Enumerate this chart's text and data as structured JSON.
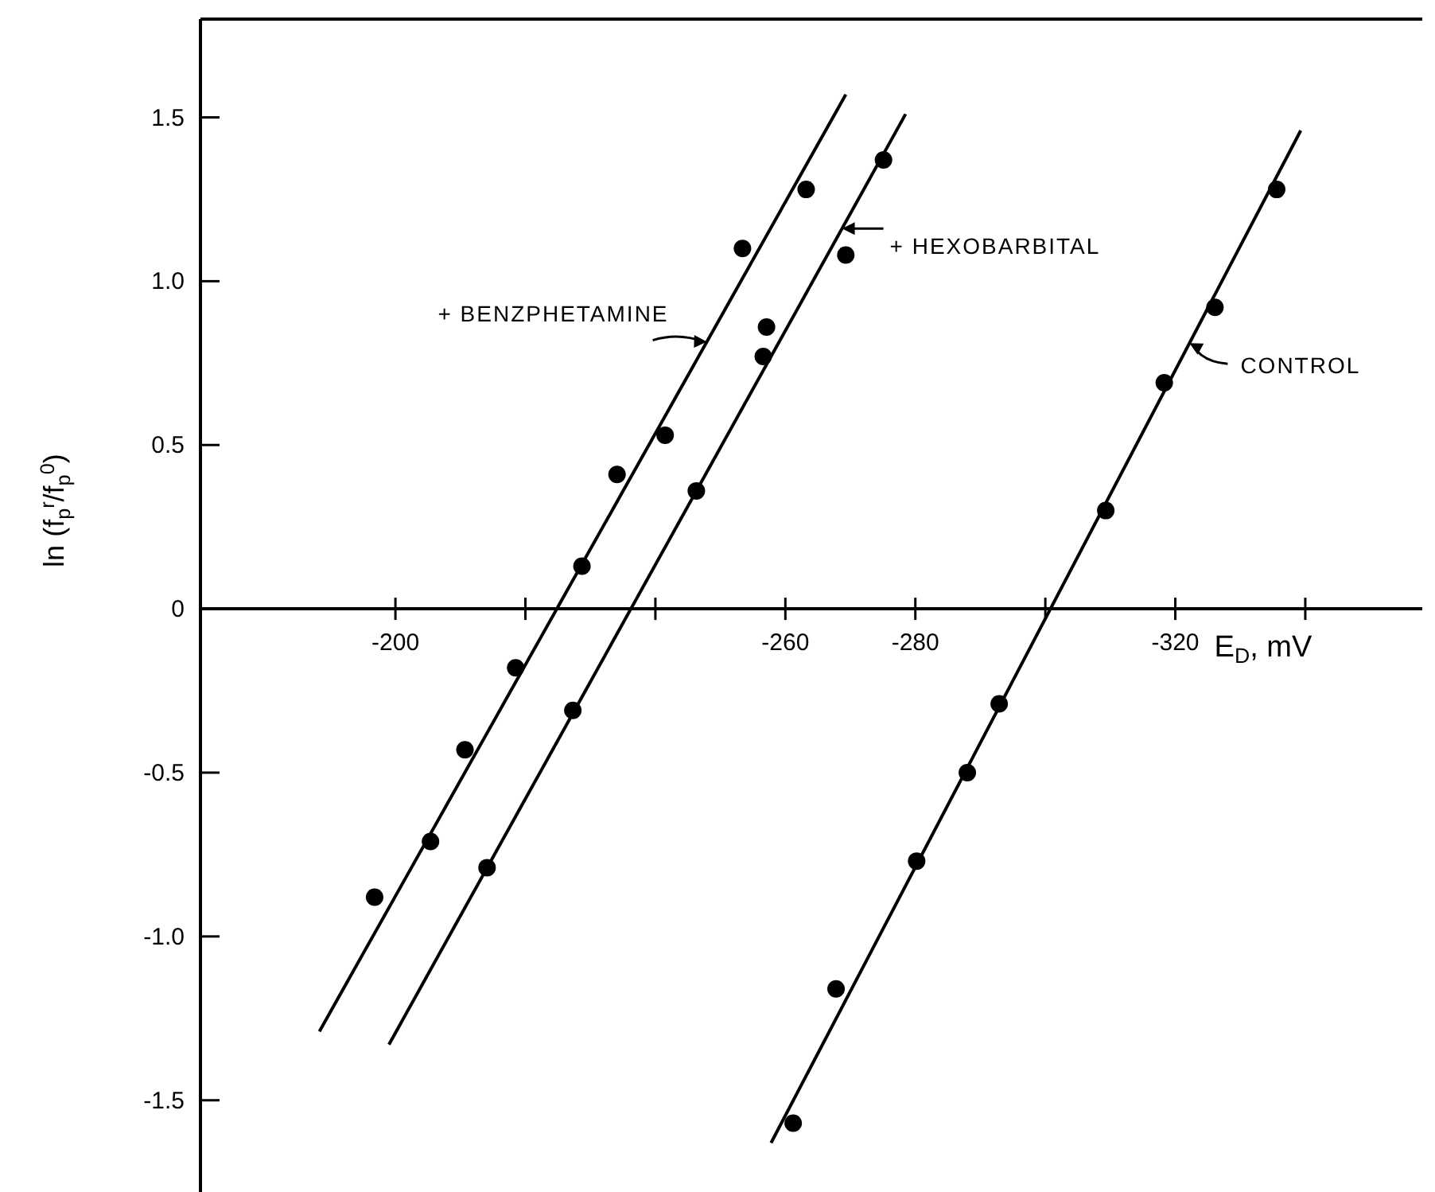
{
  "chart_data": {
    "type": "scatter",
    "xlabel": "E$_{D}$, mV",
    "ylabel": "ln (f$_{p}$$^{r}$/f$_{p}$$^{0}$)",
    "xlim": [
      -170,
      -358
    ],
    "ylim": [
      -1.78,
      1.8
    ],
    "xticks": [
      -200,
      {
        "value": -220,
        "label": null
      },
      {
        "value": -240,
        "label": null
      },
      -260,
      -280,
      {
        "value": -300,
        "label": null
      },
      -320,
      {
        "value": -340,
        "label": null
      }
    ],
    "yticks": [
      1.5,
      {
        "value": 1,
        "label": "1.0"
      },
      0.5,
      0,
      -0.5,
      {
        "value": -1,
        "label": "-1.0"
      },
      -1.5
    ],
    "grid": false,
    "marker": "circle",
    "series": [
      {
        "color": "#000000",
        "x": [
          -196.8,
          -205.4,
          -210.7,
          -218.5,
          -228.7,
          -234.1,
          -241.5,
          -253.4,
          -263.2
        ],
        "values": [
          -0.88,
          -0.71,
          -0.43,
          -0.18,
          0.13,
          0.41,
          0.53,
          1.1,
          1.28
        ]
      },
      {
        "color": "#000000",
        "x": [
          -214.1,
          -227.3,
          -246.3,
          -256.6,
          -257.1,
          -269.3,
          -275.1
        ],
        "values": [
          -0.79,
          -0.31,
          0.36,
          0.77,
          0.86,
          1.08,
          1.37
        ]
      },
      {
        "color": "#000000",
        "x": [
          -261.2,
          -267.8,
          -280.2,
          -288.0,
          -292.9,
          -309.3,
          -318.3,
          -326.1,
          -335.6
        ],
        "values": [
          -1.57,
          -1.16,
          -0.77,
          -0.5,
          -0.29,
          0.3,
          0.69,
          0.92,
          1.28
        ]
      },
      {
        "type": "line",
        "name": "+ BENZPHETAMINE",
        "color": "#000000",
        "marker": "none",
        "line_style": "solid",
        "x": [
          -188.3,
          -269.3
        ],
        "values": [
          -1.29,
          1.57
        ]
      },
      {
        "type": "line",
        "name": "+ HEXOBARBITAL",
        "color": "#000000",
        "marker": "none",
        "line_style": "solid",
        "x": [
          -199.0,
          -278.5
        ],
        "values": [
          -1.33,
          1.51
        ]
      },
      {
        "type": "line",
        "name": "CONTROL",
        "color": "#000000",
        "marker": "none",
        "line_style": "solid",
        "x": [
          -257.8,
          -339.3
        ],
        "values": [
          -1.63,
          1.46
        ]
      }
    ]
  }
}
